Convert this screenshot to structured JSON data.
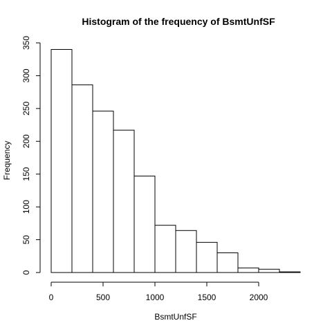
{
  "chart_data": {
    "type": "bar",
    "title": "Histogram of the frequency of BsmtUnfSF",
    "xlabel": "BsmtUnfSF",
    "ylabel": "Frequency",
    "bin_edges": [
      0,
      200,
      400,
      600,
      800,
      1000,
      1200,
      1400,
      1600,
      1800,
      2000,
      2200,
      2400
    ],
    "values": [
      340,
      286,
      246,
      217,
      147,
      72,
      64,
      46,
      30,
      7,
      5,
      1
    ],
    "xlim": [
      0,
      2400
    ],
    "ylim": [
      0,
      350
    ],
    "x_ticks": [
      0,
      500,
      1000,
      1500,
      2000
    ],
    "y_ticks": [
      0,
      50,
      100,
      150,
      200,
      250,
      300,
      350
    ],
    "grid": false,
    "legend": "none"
  }
}
